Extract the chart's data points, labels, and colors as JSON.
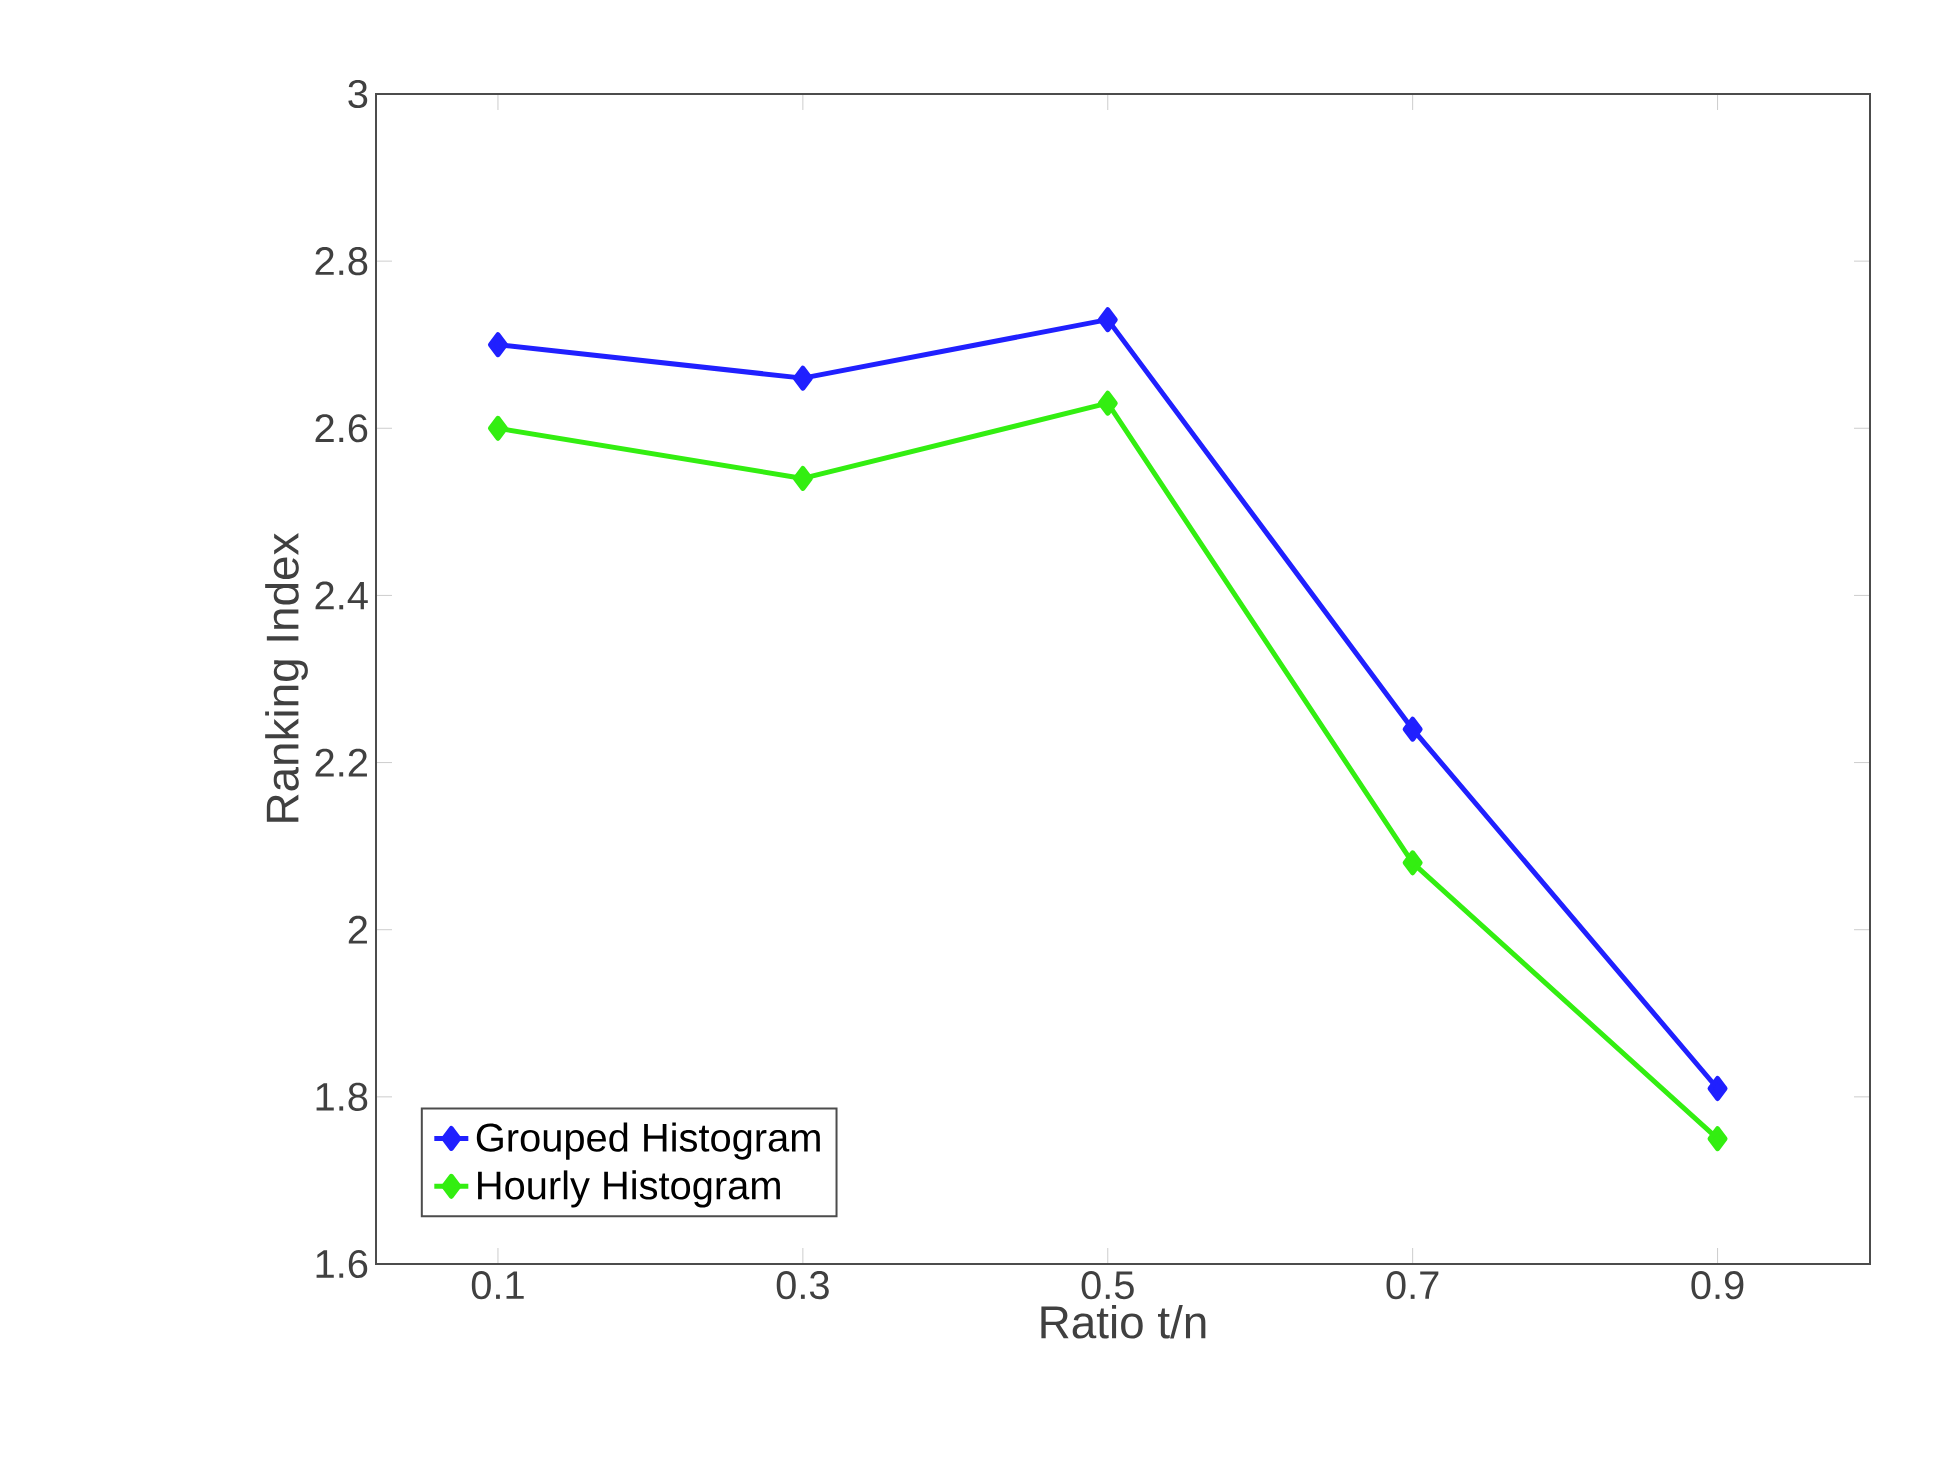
{
  "chart_data": {
    "type": "line",
    "xlabel": "Ratio t/n",
    "ylabel": "Ranking Index",
    "x": [
      0.1,
      0.3,
      0.5,
      0.7,
      0.9
    ],
    "series": [
      {
        "name": "Grouped Histogram",
        "color": "#2020ff",
        "values": [
          2.7,
          2.66,
          2.73,
          2.24,
          1.81
        ]
      },
      {
        "name": "Hourly Histogram",
        "color": "#33ee11",
        "values": [
          2.6,
          2.54,
          2.63,
          2.08,
          1.75
        ]
      }
    ],
    "xlim": [
      0.02,
      1.0
    ],
    "ylim": [
      1.6,
      3.0
    ],
    "xticks": [
      0.1,
      0.3,
      0.5,
      0.7,
      0.9
    ],
    "yticks": [
      1.6,
      1.8,
      2,
      2.2,
      2.4,
      2.6,
      2.8,
      3
    ],
    "grid": false,
    "legend": "bottom left",
    "marker": "diamond",
    "line_style": "solid"
  }
}
